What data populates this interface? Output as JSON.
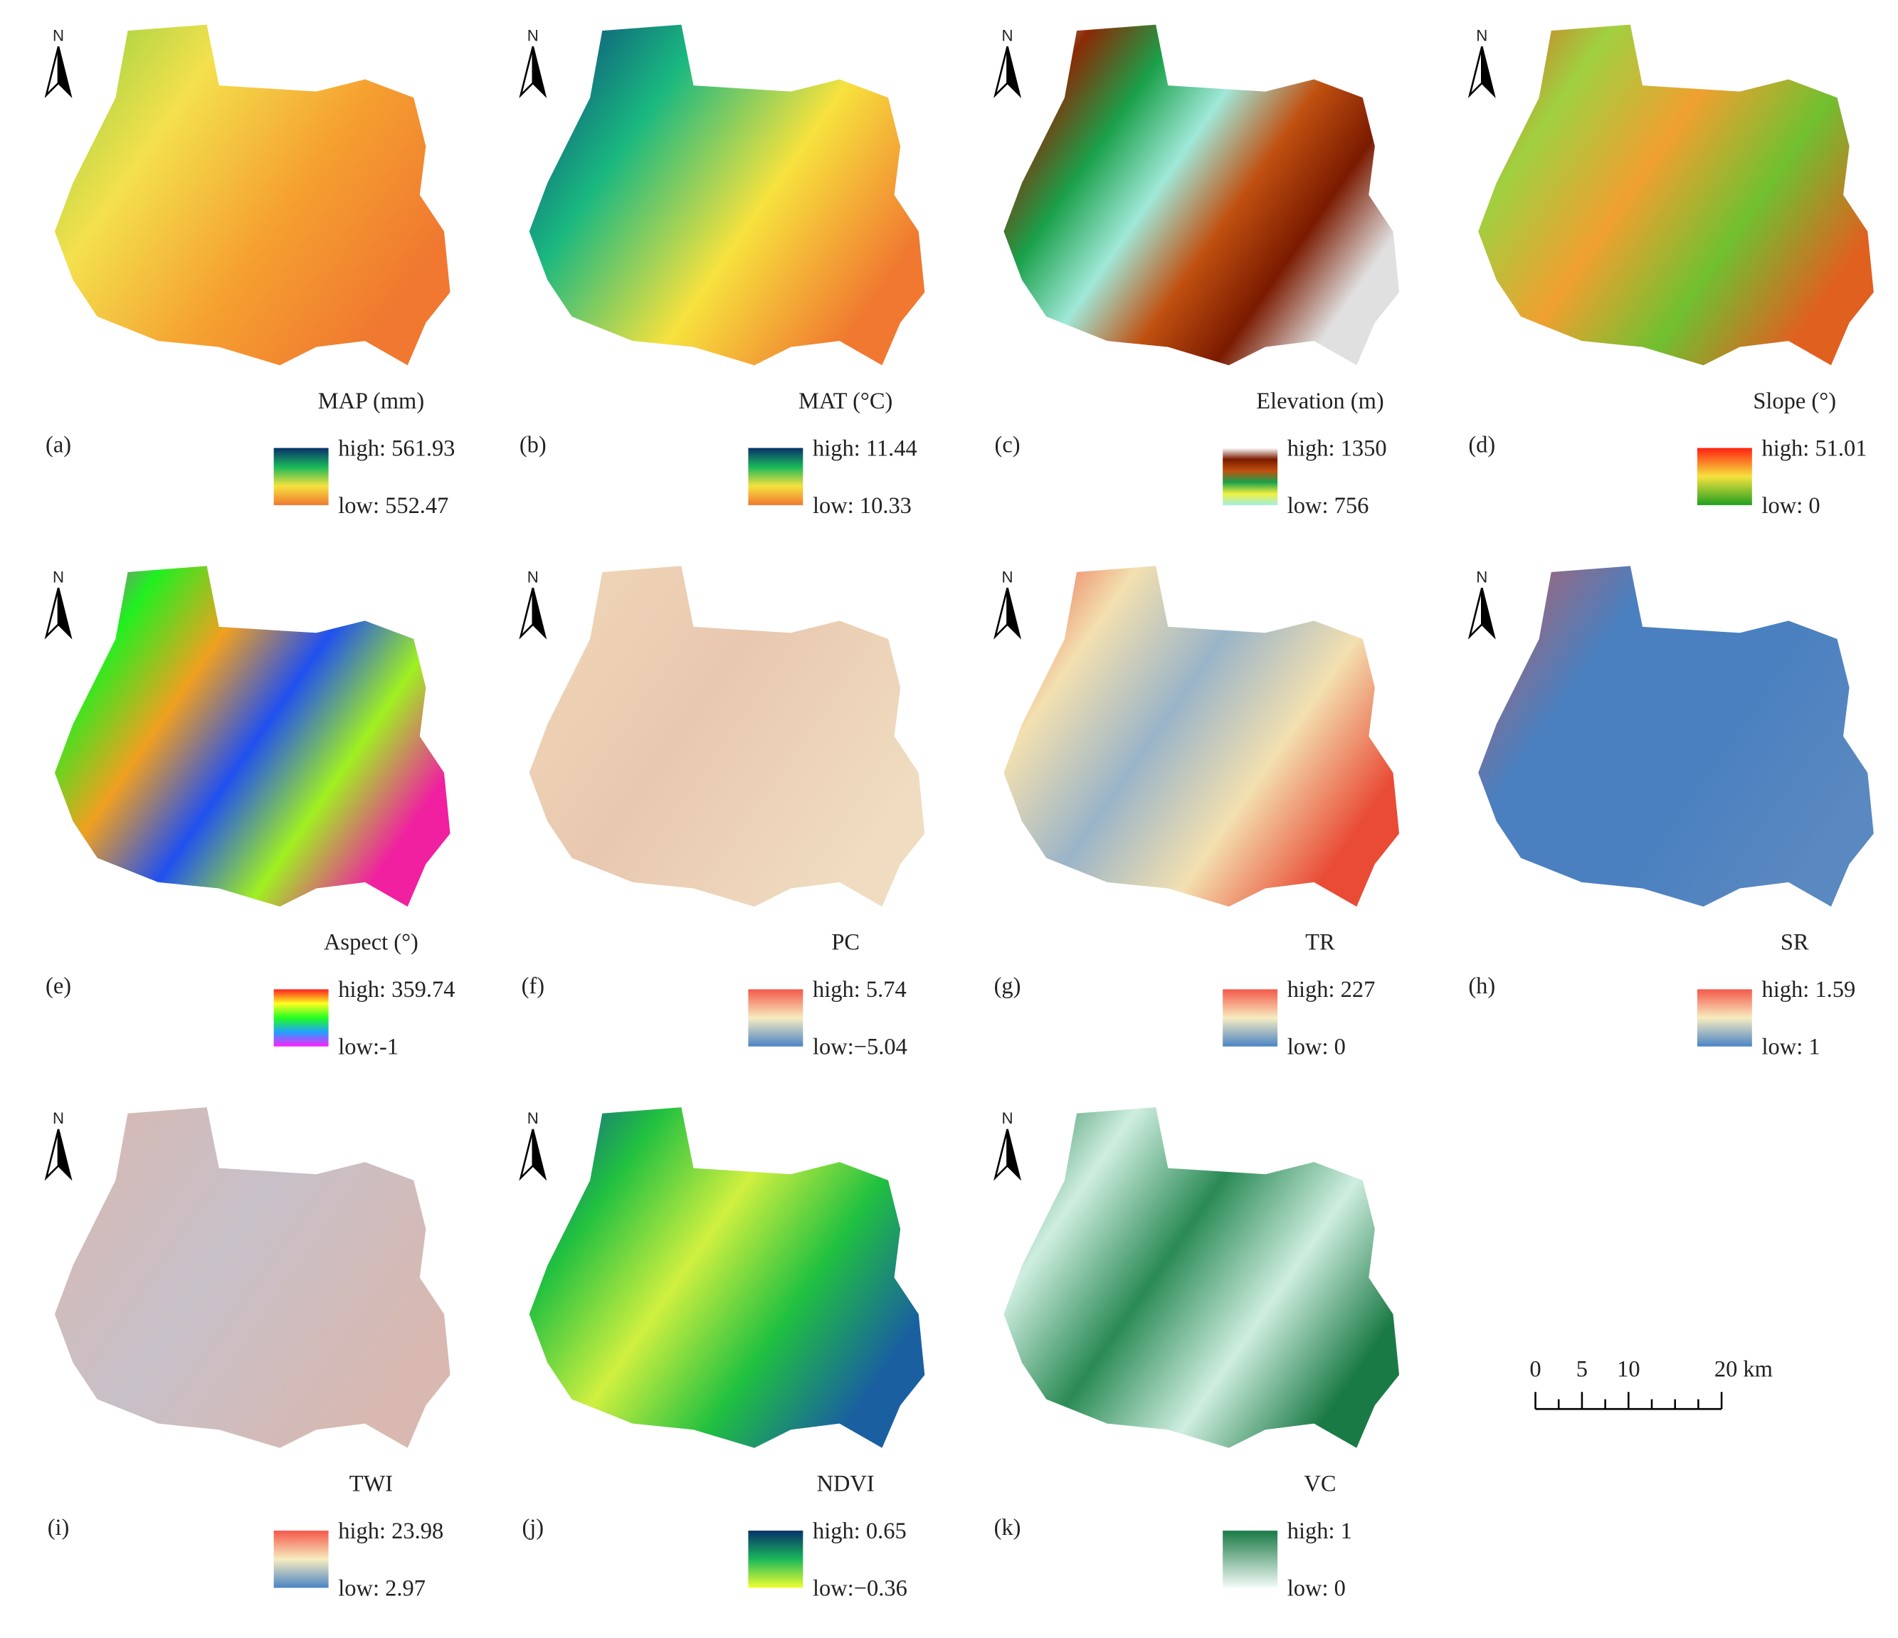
{
  "north": "N",
  "panels": [
    {
      "label": "(a)",
      "title": "MAP (mm)",
      "high": "high: 561.93",
      "low": "low: 552.47"
    },
    {
      "label": "(b)",
      "title": "MAT (°C)",
      "high": "high: 11.44",
      "low": "low: 10.33"
    },
    {
      "label": "(c)",
      "title": "Elevation (m)",
      "high": "high: 1350",
      "low": "low: 756"
    },
    {
      "label": "(d)",
      "title": "Slope (°)",
      "high": "high: 51.01",
      "low": "low: 0"
    },
    {
      "label": "(e)",
      "title": "Aspect (°)",
      "high": "high: 359.74",
      "low": "low:-1"
    },
    {
      "label": "(f)",
      "title": "PC",
      "high": "high: 5.74",
      "low": "low:−5.04"
    },
    {
      "label": "(g)",
      "title": "TR",
      "high": "high: 227",
      "low": "low: 0"
    },
    {
      "label": "(h)",
      "title": "SR",
      "high": "high: 1.59",
      "low": "low: 1"
    },
    {
      "label": "(i)",
      "title": "TWI",
      "high": "high: 23.98",
      "low": "low: 2.97"
    },
    {
      "label": "(j)",
      "title": "NDVI",
      "high": "high: 0.65",
      "low": "low:−0.36"
    },
    {
      "label": "(k)",
      "title": "VC",
      "high": "high: 1",
      "low": "low: 0"
    }
  ],
  "scale_bar": {
    "labels": [
      "0",
      "5",
      "10",
      "20 km"
    ]
  }
}
